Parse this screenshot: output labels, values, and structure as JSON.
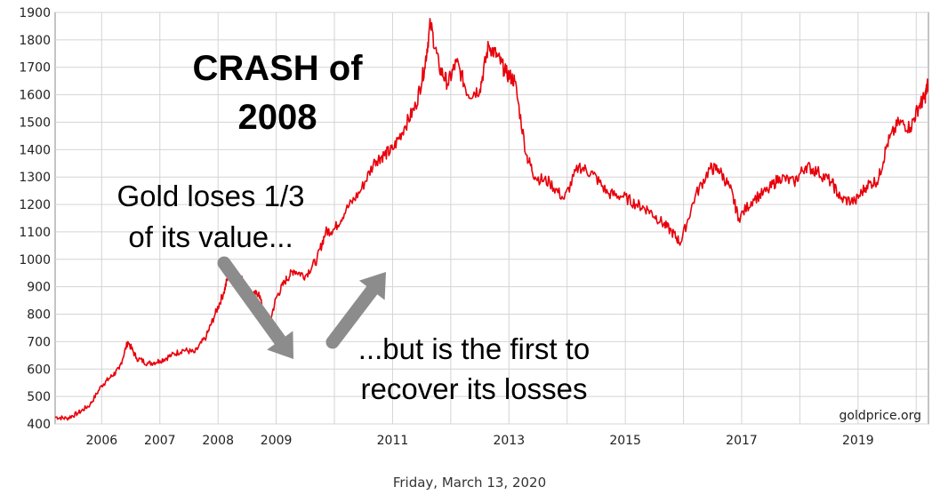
{
  "chart_data": {
    "type": "line",
    "title": "",
    "xlabel": "",
    "ylabel": "",
    "ylim": [
      400,
      1900
    ],
    "xlim": [
      2005.2,
      2020.21
    ],
    "y_ticks": [
      400,
      500,
      600,
      700,
      800,
      900,
      1000,
      1100,
      1200,
      1300,
      1400,
      1500,
      1600,
      1700,
      1800,
      1900
    ],
    "x_ticks": [
      {
        "label": "2006",
        "value": 2006
      },
      {
        "label": "2007",
        "value": 2007
      },
      {
        "label": "2008",
        "value": 2008
      },
      {
        "label": "2009",
        "value": 2009
      },
      {
        "label": "2011",
        "value": 2011
      },
      {
        "label": "2013",
        "value": 2013
      },
      {
        "label": "2015",
        "value": 2015
      },
      {
        "label": "2017",
        "value": 2017
      },
      {
        "label": "2019",
        "value": 2019
      }
    ],
    "x_grid": [
      2006,
      2007,
      2008,
      2009,
      2010,
      2011,
      2012,
      2013,
      2014,
      2015,
      2016,
      2017,
      2018,
      2019,
      2020
    ],
    "grid": true,
    "line_color": "#e8000b",
    "series": [
      {
        "x": [
          2005.2,
          2005.4,
          2005.6,
          2005.8,
          2006.0,
          2006.15,
          2006.3,
          2006.45,
          2006.6,
          2006.8,
          2007.0,
          2007.2,
          2007.4,
          2007.6,
          2007.8,
          2007.95,
          2008.1,
          2008.2,
          2008.4,
          2008.55,
          2008.7,
          2008.85,
          2009.0,
          2009.15,
          2009.3,
          2009.5,
          2009.7,
          2009.85,
          2010.0,
          2010.2,
          2010.45,
          2010.7,
          2010.85,
          2011.0,
          2011.2,
          2011.4,
          2011.55,
          2011.65,
          2011.8,
          2011.95,
          2012.1,
          2012.3,
          2012.5,
          2012.65,
          2012.8,
          2012.95,
          2013.1,
          2013.3,
          2013.45,
          2013.7,
          2013.95,
          2014.2,
          2014.45,
          2014.7,
          2014.95,
          2015.2,
          2015.4,
          2015.6,
          2015.8,
          2015.95,
          2016.2,
          2016.45,
          2016.6,
          2016.8,
          2016.95,
          2017.2,
          2017.45,
          2017.65,
          2017.9,
          2018.1,
          2018.3,
          2018.55,
          2018.7,
          2018.95,
          2019.15,
          2019.35,
          2019.5,
          2019.7,
          2019.9,
          2020.05,
          2020.15,
          2020.2
        ],
        "y": [
          425,
          420,
          440,
          470,
          540,
          570,
          600,
          700,
          640,
          620,
          630,
          650,
          670,
          660,
          720,
          800,
          880,
          960,
          930,
          860,
          880,
          740,
          860,
          920,
          960,
          940,
          1000,
          1100,
          1110,
          1180,
          1250,
          1360,
          1380,
          1400,
          1480,
          1560,
          1700,
          1860,
          1700,
          1640,
          1720,
          1600,
          1620,
          1780,
          1740,
          1680,
          1650,
          1380,
          1300,
          1280,
          1220,
          1340,
          1310,
          1240,
          1230,
          1200,
          1180,
          1140,
          1100,
          1060,
          1230,
          1330,
          1330,
          1260,
          1150,
          1220,
          1250,
          1300,
          1280,
          1340,
          1320,
          1280,
          1220,
          1210,
          1270,
          1290,
          1420,
          1500,
          1480,
          1560,
          1590,
          1640
        ]
      }
    ]
  },
  "annotations": {
    "crash_title_line1": "CRASH of",
    "crash_title_line2": "2008",
    "loses_line1": "Gold loses 1/3",
    "loses_line2": "of its value...",
    "recover_line1": "...but is the first to",
    "recover_line2": "recover its losses"
  },
  "source_label": "goldprice.org",
  "date_label": "Friday, March 13, 2020",
  "arrow_color": "#8c8c8c"
}
